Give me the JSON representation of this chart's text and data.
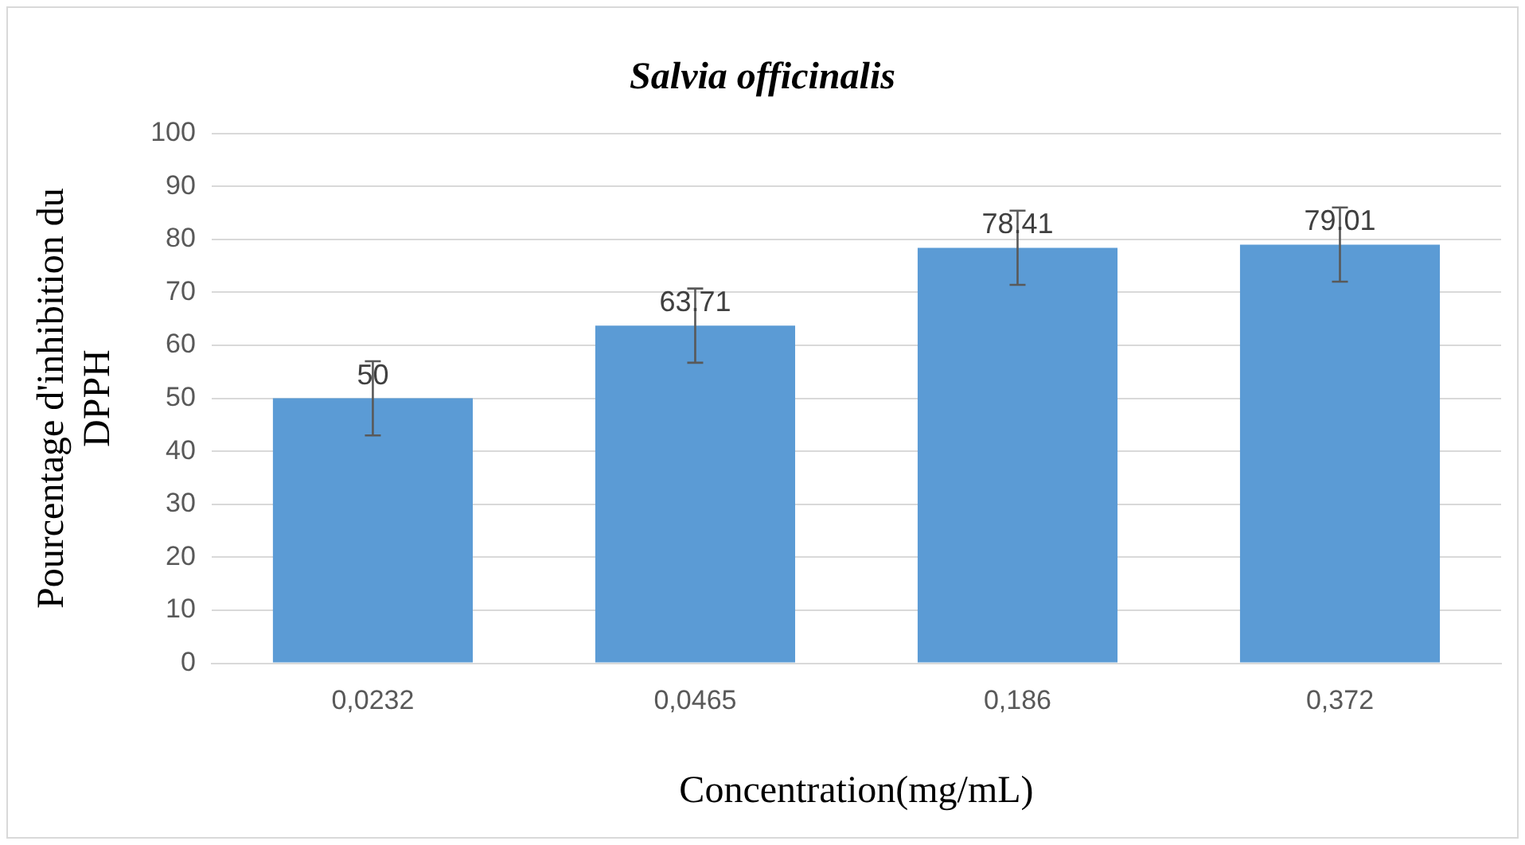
{
  "chart_data": {
    "type": "bar",
    "title": "Salvia officinalis",
    "xlabel": "Concentration(mg/mL)",
    "ylabel": "Pourcentage d'inhibition du DPPH",
    "categories": [
      "0,0232",
      "0,0465",
      "0,186",
      "0,372"
    ],
    "values": [
      50,
      63.71,
      78.41,
      79.01
    ],
    "errors": [
      7,
      7,
      7,
      7
    ],
    "value_labels": [
      "50",
      "63.71",
      "78.41",
      "79.01"
    ],
    "color": "#5b9bd5",
    "ylim": [
      0,
      100
    ],
    "yticks": [
      0,
      10,
      20,
      30,
      40,
      50,
      60,
      70,
      80,
      90,
      100
    ],
    "grid": "y",
    "legend": false
  }
}
